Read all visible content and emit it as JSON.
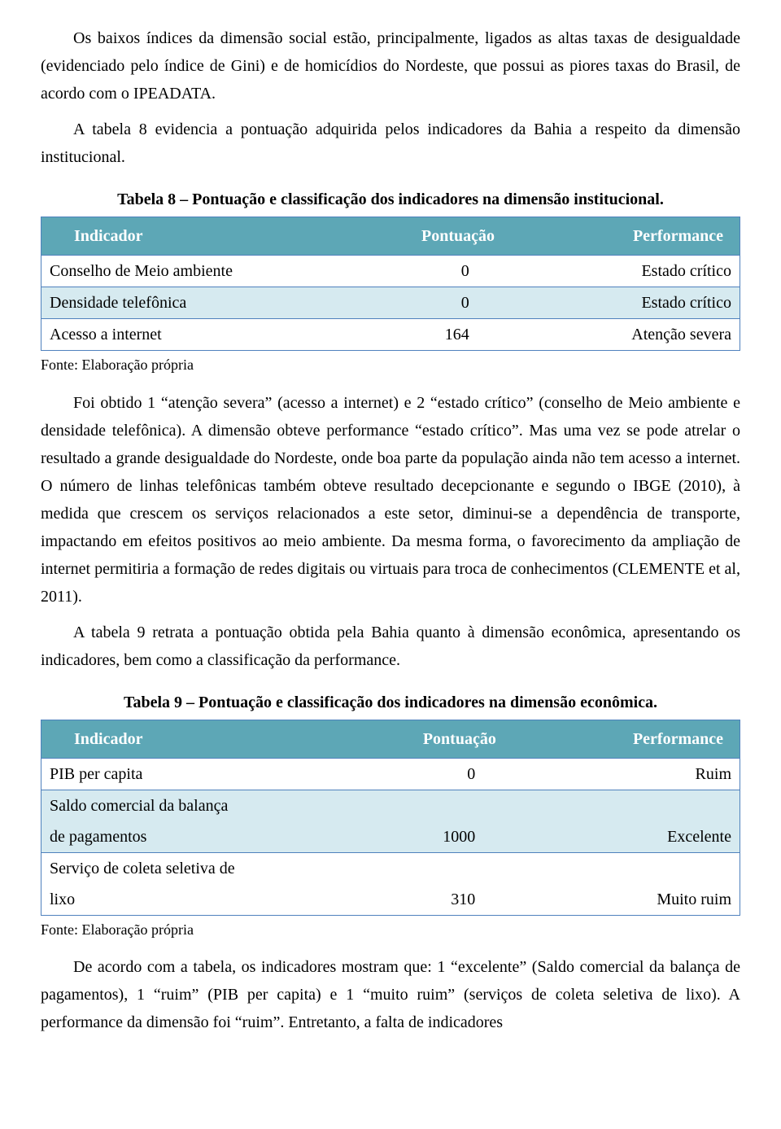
{
  "para1": "Os baixos índices da dimensão social estão, principalmente, ligados as altas taxas de desigualdade (evidenciado pelo índice de Gini) e de homicídios do Nordeste, que possui as piores taxas do Brasil, de acordo com o IPEADATA.",
  "para2": "A tabela 8 evidencia a pontuação adquirida pelos indicadores da Bahia a respeito da dimensão institucional.",
  "table8": {
    "caption": "Tabela 8 – Pontuação e classificação dos indicadores na dimensão institucional.",
    "header_bg": "#5da7b6",
    "border_color": "#4f81bd",
    "row_alt_bg": "#d6eaf0",
    "headers": {
      "indicador": "Indicador",
      "pontuacao": "Pontuação",
      "performance": "Performance"
    },
    "rows": [
      {
        "indicador": "Conselho de Meio ambiente",
        "pontuacao": "0",
        "performance": "Estado crítico"
      },
      {
        "indicador": "Densidade telefônica",
        "pontuacao": "0",
        "performance": "Estado crítico"
      },
      {
        "indicador": "Acesso a internet",
        "pontuacao": "164",
        "performance": "Atenção severa"
      }
    ],
    "fonte": "Fonte: Elaboração própria"
  },
  "para3": "Foi obtido 1 “atenção severa” (acesso a internet) e 2 “estado crítico” (conselho de Meio ambiente e densidade telefônica). A dimensão obteve performance “estado crítico”. Mas uma vez se pode atrelar o resultado a grande desigualdade do Nordeste, onde boa parte da população ainda não tem acesso a internet. O número de linhas telefônicas também obteve resultado decepcionante e segundo o IBGE (2010), à medida que crescem os serviços relacionados a este setor, diminui-se a dependência de transporte, impactando em efeitos positivos ao meio ambiente. Da mesma forma, o favorecimento da ampliação de internet permitiria a formação de redes digitais ou virtuais para troca de conhecimentos (CLEMENTE et al, 2011).",
  "para4": "A tabela 9 retrata a pontuação obtida pela Bahia quanto à dimensão econômica, apresentando os indicadores, bem como a classificação da performance.",
  "table9": {
    "caption": "Tabela 9 – Pontuação e classificação dos indicadores na dimensão econômica.",
    "headers": {
      "indicador": "Indicador",
      "pontuacao": "Pontuação",
      "performance": "Performance"
    },
    "rows": [
      {
        "indicador_l1": "PIB per capita",
        "indicador_l2": "",
        "pontuacao": "0",
        "performance": "Ruim"
      },
      {
        "indicador_l1": "Saldo comercial da balança",
        "indicador_l2": "de pagamentos",
        "pontuacao": "1000",
        "performance": "Excelente"
      },
      {
        "indicador_l1": "Serviço de coleta seletiva de",
        "indicador_l2": "lixo",
        "pontuacao": "310",
        "performance": "Muito ruim"
      }
    ],
    "fonte": "Fonte: Elaboração própria"
  },
  "para5": "De acordo com a tabela, os indicadores mostram que: 1 “excelente” (Saldo comercial da balança de pagamentos), 1 “ruim” (PIB per capita) e 1 “muito ruim” (serviços de coleta seletiva de lixo). A performance da dimensão foi “ruim”. Entretanto, a falta de indicadores"
}
